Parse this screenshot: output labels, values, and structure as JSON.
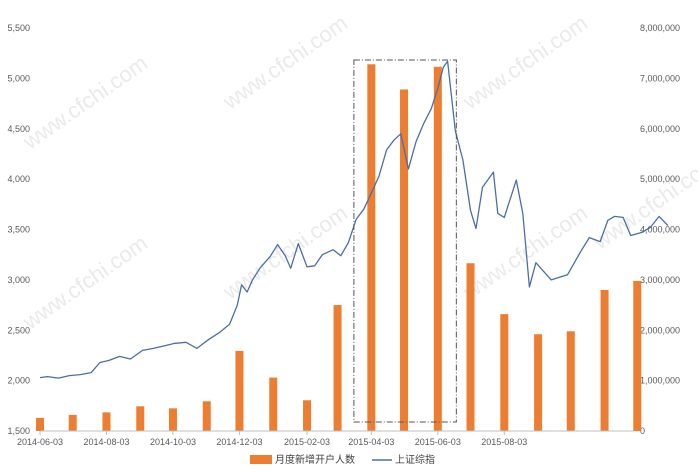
{
  "chart_data": {
    "type": "bar+line",
    "title": "",
    "left_axis": {
      "range": [
        1500,
        5500
      ],
      "ticks": [
        "1,500",
        "2,000",
        "2,500",
        "3,000",
        "3,500",
        "4,000",
        "4,500",
        "5,000",
        "5,500"
      ],
      "tick_values": [
        1500,
        2000,
        2500,
        3000,
        3500,
        4000,
        4500,
        5000,
        5500
      ]
    },
    "right_axis": {
      "range": [
        0,
        8000000
      ],
      "ticks": [
        "0",
        "1,000,000",
        "2,000,000",
        "3,000,000",
        "4,000,000",
        "5,000,000",
        "6,000,000",
        "7,000,000",
        "8,000,000"
      ],
      "tick_values": [
        0,
        1000000,
        2000000,
        3000000,
        4000000,
        5000000,
        6000000,
        7000000,
        8000000
      ]
    },
    "x_axis": {
      "start": "2014-06-03",
      "end": "2015-11-30",
      "tick_labels": [
        "2014-06-03",
        "2014-08-03",
        "2014-10-03",
        "2014-12-03",
        "2015-02-03",
        "2015-04-03",
        "2015-06-03",
        "2015-08-03"
      ],
      "tick_dates": [
        "2014-06-03",
        "2014-08-03",
        "2014-10-03",
        "2014-12-03",
        "2015-02-03",
        "2015-04-03",
        "2015-06-03",
        "2015-08-03"
      ]
    },
    "grid": false,
    "legend_position": "bottom",
    "series": [
      {
        "name": "月度新增开户人数",
        "type": "bar",
        "axis": "right",
        "color": "#ED7D31",
        "points": [
          {
            "date": "2014-06-03",
            "value": 260000
          },
          {
            "date": "2014-07-03",
            "value": 320000
          },
          {
            "date": "2014-08-03",
            "value": 370000
          },
          {
            "date": "2014-09-03",
            "value": 490000
          },
          {
            "date": "2014-10-03",
            "value": 450000
          },
          {
            "date": "2014-11-03",
            "value": 590000
          },
          {
            "date": "2014-12-03",
            "value": 1590000
          },
          {
            "date": "2015-01-03",
            "value": 1060000
          },
          {
            "date": "2015-02-03",
            "value": 610000
          },
          {
            "date": "2015-03-03",
            "value": 2500000
          },
          {
            "date": "2015-04-03",
            "value": 7280000
          },
          {
            "date": "2015-05-03",
            "value": 6780000
          },
          {
            "date": "2015-06-03",
            "value": 7230000
          },
          {
            "date": "2015-07-03",
            "value": 3330000
          },
          {
            "date": "2015-08-03",
            "value": 2320000
          },
          {
            "date": "2015-09-03",
            "value": 1920000
          },
          {
            "date": "2015-10-03",
            "value": 1980000
          },
          {
            "date": "2015-11-03",
            "value": 2800000
          },
          {
            "date": "2015-12-03",
            "value": 2980000
          }
        ]
      },
      {
        "name": "上证综指",
        "type": "line",
        "axis": "left",
        "color": "#4A6FA5",
        "points": [
          {
            "date": "2014-06-03",
            "value": 2030
          },
          {
            "date": "2014-06-10",
            "value": 2040
          },
          {
            "date": "2014-06-20",
            "value": 2025
          },
          {
            "date": "2014-06-30",
            "value": 2050
          },
          {
            "date": "2014-07-10",
            "value": 2060
          },
          {
            "date": "2014-07-20",
            "value": 2080
          },
          {
            "date": "2014-07-28",
            "value": 2180
          },
          {
            "date": "2014-08-05",
            "value": 2200
          },
          {
            "date": "2014-08-15",
            "value": 2240
          },
          {
            "date": "2014-08-25",
            "value": 2215
          },
          {
            "date": "2014-09-05",
            "value": 2300
          },
          {
            "date": "2014-09-15",
            "value": 2320
          },
          {
            "date": "2014-09-25",
            "value": 2345
          },
          {
            "date": "2014-10-05",
            "value": 2370
          },
          {
            "date": "2014-10-15",
            "value": 2380
          },
          {
            "date": "2014-10-25",
            "value": 2320
          },
          {
            "date": "2014-11-05",
            "value": 2410
          },
          {
            "date": "2014-11-15",
            "value": 2480
          },
          {
            "date": "2014-11-24",
            "value": 2560
          },
          {
            "date": "2014-12-01",
            "value": 2750
          },
          {
            "date": "2014-12-05",
            "value": 2950
          },
          {
            "date": "2014-12-10",
            "value": 2880
          },
          {
            "date": "2014-12-15",
            "value": 3000
          },
          {
            "date": "2014-12-22",
            "value": 3120
          },
          {
            "date": "2014-12-31",
            "value": 3230
          },
          {
            "date": "2015-01-07",
            "value": 3350
          },
          {
            "date": "2015-01-14",
            "value": 3240
          },
          {
            "date": "2015-01-19",
            "value": 3115
          },
          {
            "date": "2015-01-26",
            "value": 3360
          },
          {
            "date": "2015-02-03",
            "value": 3130
          },
          {
            "date": "2015-02-10",
            "value": 3140
          },
          {
            "date": "2015-02-17",
            "value": 3250
          },
          {
            "date": "2015-02-27",
            "value": 3300
          },
          {
            "date": "2015-03-06",
            "value": 3240
          },
          {
            "date": "2015-03-13",
            "value": 3370
          },
          {
            "date": "2015-03-20",
            "value": 3600
          },
          {
            "date": "2015-03-27",
            "value": 3700
          },
          {
            "date": "2015-04-03",
            "value": 3860
          },
          {
            "date": "2015-04-10",
            "value": 4030
          },
          {
            "date": "2015-04-17",
            "value": 4290
          },
          {
            "date": "2015-04-24",
            "value": 4390
          },
          {
            "date": "2015-04-30",
            "value": 4450
          },
          {
            "date": "2015-05-07",
            "value": 4100
          },
          {
            "date": "2015-05-14",
            "value": 4370
          },
          {
            "date": "2015-05-21",
            "value": 4550
          },
          {
            "date": "2015-05-28",
            "value": 4700
          },
          {
            "date": "2015-06-03",
            "value": 4900
          },
          {
            "date": "2015-06-08",
            "value": 5110
          },
          {
            "date": "2015-06-12",
            "value": 5170
          },
          {
            "date": "2015-06-19",
            "value": 4480
          },
          {
            "date": "2015-06-26",
            "value": 4190
          },
          {
            "date": "2015-07-03",
            "value": 3690
          },
          {
            "date": "2015-07-08",
            "value": 3510
          },
          {
            "date": "2015-07-14",
            "value": 3920
          },
          {
            "date": "2015-07-24",
            "value": 4070
          },
          {
            "date": "2015-07-28",
            "value": 3660
          },
          {
            "date": "2015-08-03",
            "value": 3620
          },
          {
            "date": "2015-08-14",
            "value": 3990
          },
          {
            "date": "2015-08-20",
            "value": 3660
          },
          {
            "date": "2015-08-26",
            "value": 2930
          },
          {
            "date": "2015-09-01",
            "value": 3170
          },
          {
            "date": "2015-09-15",
            "value": 3000
          },
          {
            "date": "2015-09-30",
            "value": 3050
          },
          {
            "date": "2015-10-12",
            "value": 3280
          },
          {
            "date": "2015-10-20",
            "value": 3420
          },
          {
            "date": "2015-10-30",
            "value": 3380
          },
          {
            "date": "2015-11-06",
            "value": 3590
          },
          {
            "date": "2015-11-12",
            "value": 3630
          },
          {
            "date": "2015-11-20",
            "value": 3620
          },
          {
            "date": "2015-11-27",
            "value": 3440
          },
          {
            "date": "2015-12-07",
            "value": 3470
          },
          {
            "date": "2015-12-15",
            "value": 3520
          },
          {
            "date": "2015-12-23",
            "value": 3630
          },
          {
            "date": "2015-12-31",
            "value": 3540
          }
        ]
      }
    ],
    "highlight_box": {
      "from": "2015-03-18",
      "to": "2015-06-20",
      "style": "dash-dot"
    },
    "watermark": "www.cfchi.com"
  }
}
